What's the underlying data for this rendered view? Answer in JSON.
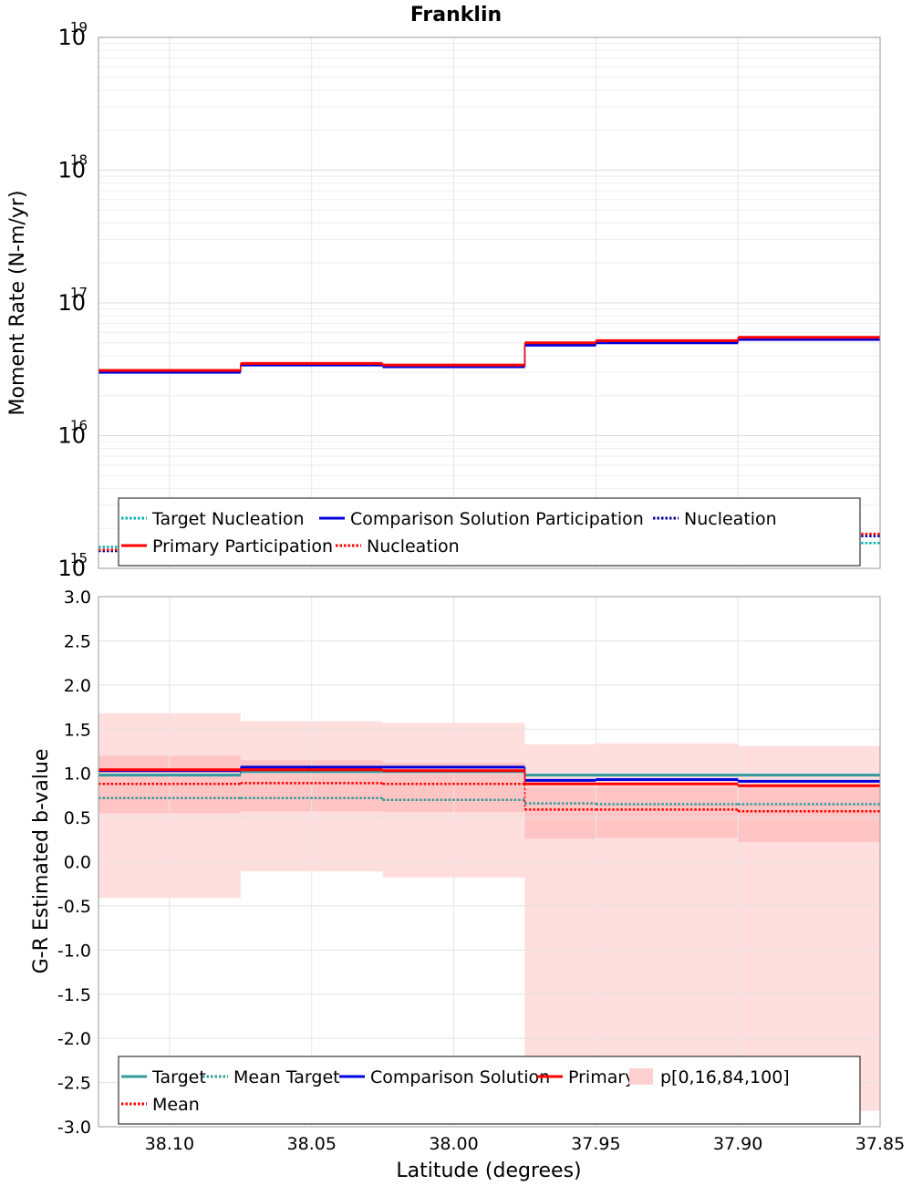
{
  "title": "Franklin",
  "chart_data": [
    {
      "type": "line",
      "panel": "moment-rate",
      "ylabel": "Moment Rate (N-m/yr)",
      "xlabel": "",
      "y_scale": "log",
      "ylim": [
        1000000000000000.0,
        1e+19
      ],
      "xlim": [
        38.125,
        37.85
      ],
      "x_ticks": [
        38.1,
        38.05,
        38.0,
        37.95,
        37.9,
        37.85
      ],
      "y_tick_labels": [
        {
          "value": 1000000000000000.0,
          "base": "10",
          "exp": "15"
        },
        {
          "value": 1e+16,
          "base": "10",
          "exp": "16"
        },
        {
          "value": 1e+17,
          "base": "10",
          "exp": "17"
        },
        {
          "value": 1e+18,
          "base": "10",
          "exp": "18"
        },
        {
          "value": 1e+19,
          "base": "10",
          "exp": "19"
        }
      ],
      "grid": true,
      "bin_edges": [
        38.125,
        38.075,
        38.025,
        37.975,
        37.95,
        37.9,
        37.85
      ],
      "series": [
        {
          "name": "Target Nucleation",
          "color": "#00b0b0",
          "style": "dotted",
          "values": [
            1450000000000000.0,
            1450000000000000.0,
            1450000000000000.0,
            1520000000000000.0,
            1550000000000000.0,
            1550000000000000.0
          ]
        },
        {
          "name": "Comparison Solution Participation",
          "color": "#0000dd",
          "style": "solid",
          "values": [
            3e+16,
            3.4e+16,
            3.3e+16,
            4.8e+16,
            5e+16,
            5.3e+16
          ]
        },
        {
          "name": "Nucleation",
          "color": "#000099",
          "style": "dotted",
          "values": [
            1350000000000000.0,
            1400000000000000.0,
            1400000000000000.0,
            1700000000000000.0,
            1720000000000000.0,
            1750000000000000.0
          ]
        },
        {
          "name": "Primary Participation",
          "color": "#ff0000",
          "style": "solid",
          "values": [
            3.1e+16,
            3.5e+16,
            3.4e+16,
            5e+16,
            5.2e+16,
            5.5e+16
          ]
        },
        {
          "name": "Nucleation",
          "color": "#ff0000",
          "style": "dotted",
          "values": [
            1380000000000000.0,
            1420000000000000.0,
            1420000000000000.0,
            1750000000000000.0,
            1780000000000000.0,
            1820000000000000.0
          ]
        }
      ],
      "legend": {
        "placement": "bottom",
        "rows": [
          [
            {
              "label": "Target Nucleation",
              "color": "#00b0b0",
              "style": "dotted"
            },
            {
              "label": "Comparison Solution Participation",
              "color": "#0000dd",
              "style": "solid"
            },
            {
              "label": "Nucleation",
              "color": "#000099",
              "style": "dotted"
            }
          ],
          [
            {
              "label": "Primary Participation",
              "color": "#ff0000",
              "style": "solid"
            },
            {
              "label": "Nucleation",
              "color": "#ff0000",
              "style": "dotted"
            }
          ]
        ]
      }
    },
    {
      "type": "line",
      "panel": "b-value",
      "ylabel": "G-R Estimated b-value",
      "xlabel": "Latitude (degrees)",
      "ylim": [
        -3.0,
        3.0
      ],
      "xlim": [
        38.125,
        37.85
      ],
      "x_ticks": [
        38.1,
        38.05,
        38.0,
        37.95,
        37.9,
        37.85
      ],
      "y_ticks": [
        3.0,
        2.5,
        2.0,
        1.5,
        1.0,
        0.5,
        0.0,
        -0.5,
        -1.0,
        -1.5,
        -2.0,
        -2.5,
        -3.0
      ],
      "grid": true,
      "bin_edges": [
        38.125,
        38.075,
        38.025,
        37.975,
        37.95,
        37.9,
        37.85
      ],
      "series": [
        {
          "name": "Target",
          "color": "#339999",
          "style": "solid",
          "values": [
            0.98,
            1.02,
            1.02,
            0.98,
            0.98,
            0.98
          ]
        },
        {
          "name": "Mean Target",
          "color": "#339999",
          "style": "dotted",
          "values": [
            0.72,
            0.72,
            0.7,
            0.66,
            0.65,
            0.65
          ]
        },
        {
          "name": "Comparison Solution",
          "color": "#0000dd",
          "style": "solid",
          "values": [
            1.03,
            1.07,
            1.07,
            0.92,
            0.93,
            0.91
          ]
        },
        {
          "name": "Primary",
          "color": "#ff0000",
          "style": "solid",
          "values": [
            1.04,
            1.04,
            1.03,
            0.88,
            0.88,
            0.86
          ]
        },
        {
          "name": "Mean",
          "color": "#ff0000",
          "style": "dotted",
          "values": [
            0.88,
            0.89,
            0.88,
            0.59,
            0.59,
            0.57
          ]
        }
      ],
      "percentile_bands": {
        "name": "p[0,16,84,100]",
        "color": "#ffb0b0",
        "p0": [
          -0.41,
          -0.11,
          -0.18,
          -2.57,
          -2.57,
          -2.82
        ],
        "p16": [
          0.55,
          0.57,
          0.56,
          0.26,
          0.27,
          0.22
        ],
        "p84": [
          1.2,
          1.15,
          1.12,
          0.84,
          0.85,
          0.84
        ],
        "p100": [
          1.68,
          1.59,
          1.57,
          1.33,
          1.34,
          1.31
        ]
      },
      "legend": {
        "placement": "bottom",
        "rows": [
          [
            {
              "label": "Target",
              "color": "#339999",
              "style": "solid"
            },
            {
              "label": "Mean Target",
              "color": "#339999",
              "style": "dotted"
            },
            {
              "label": "Comparison Solution",
              "color": "#0000dd",
              "style": "solid"
            },
            {
              "label": "Primary",
              "color": "#ff0000",
              "style": "solid"
            },
            {
              "label": "p[0,16,84,100]",
              "color": "#ffd0d0",
              "style": "patch"
            }
          ],
          [
            {
              "label": "Mean",
              "color": "#ff0000",
              "style": "dotted"
            }
          ]
        ]
      }
    }
  ]
}
